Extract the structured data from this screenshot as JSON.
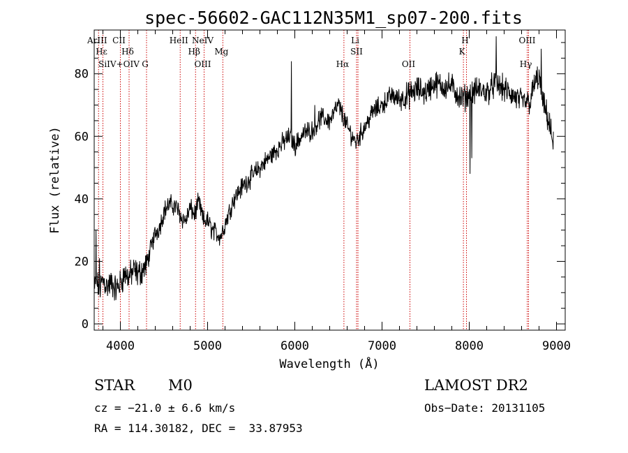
{
  "chart_data": {
    "type": "line",
    "title": "spec-56602-GAC112N35M1_sp07-200.fits",
    "xlabel": "Wavelength (Å)",
    "ylabel": "Flux (relative)",
    "xlim": [
      3700,
      9100
    ],
    "ylim": [
      -2,
      94
    ],
    "xticks": [
      4000,
      5000,
      6000,
      7000,
      8000,
      9000
    ],
    "yticks": [
      0,
      20,
      40,
      60,
      80
    ],
    "line_color": "#000000",
    "marker_color": "#cc0000",
    "spectrum_anchors": {
      "x": [
        3700,
        3720,
        3760,
        3800,
        3850,
        3900,
        3950,
        4000,
        4050,
        4100,
        4150,
        4200,
        4250,
        4300,
        4350,
        4400,
        4450,
        4500,
        4550,
        4600,
        4650,
        4700,
        4750,
        4800,
        4850,
        4900,
        4950,
        5000,
        5050,
        5100,
        5150,
        5200,
        5250,
        5300,
        5400,
        5500,
        5600,
        5700,
        5800,
        5900,
        5950,
        6000,
        6100,
        6200,
        6300,
        6400,
        6500,
        6560,
        6600,
        6700,
        6800,
        6900,
        7000,
        7100,
        7200,
        7300,
        7400,
        7500,
        7600,
        7700,
        7800,
        7900,
        8000,
        8100,
        8200,
        8300,
        8400,
        8500,
        8600,
        8700,
        8750,
        8800,
        8850,
        8900,
        8960
      ],
      "y": [
        10,
        14,
        11,
        14,
        12,
        13,
        11,
        13,
        16,
        15,
        17,
        16,
        17,
        19,
        24,
        29,
        31,
        36,
        38,
        38,
        37,
        34,
        33,
        37,
        35,
        39,
        33,
        33,
        30,
        29,
        28,
        32,
        36,
        40,
        44,
        47,
        50,
        53,
        56,
        59,
        60,
        57,
        61,
        62,
        66,
        65,
        70,
        66,
        63,
        58,
        63,
        68,
        70,
        73,
        72,
        73,
        75,
        74,
        77,
        76,
        76,
        72,
        73,
        75,
        74,
        77,
        75,
        73,
        71,
        71,
        77,
        79,
        70,
        66,
        58
      ]
    },
    "spikes": {
      "x": [
        5960,
        8310,
        8825,
        3720,
        3760,
        6230,
        7560,
        8030,
        8010
      ],
      "y": [
        84,
        92,
        88,
        30,
        21,
        70,
        75,
        53,
        48
      ]
    },
    "emission_lines": [
      {
        "label": "ArIII",
        "x": 3750
      },
      {
        "label": "Hε",
        "x": 3800
      },
      {
        "label": "SiIV+OIV",
        "x": 4000
      },
      {
        "label": "CII",
        "x": 4000
      },
      {
        "label": "Hδ",
        "x": 4100
      },
      {
        "label": "G",
        "x": 4300
      },
      {
        "label": "HeII",
        "x": 4686
      },
      {
        "label": "Hβ",
        "x": 4862
      },
      {
        "label": "OIII",
        "x": 4960
      },
      {
        "label": "NeIV",
        "x": 4960
      },
      {
        "label": "Mg",
        "x": 5175
      },
      {
        "label": "Hα",
        "x": 6563
      },
      {
        "label": "Li",
        "x": 6708
      },
      {
        "label": "SII",
        "x": 6724
      },
      {
        "label": "OII",
        "x": 7320
      },
      {
        "label": "H",
        "x": 7968
      },
      {
        "label": "K",
        "x": 7933
      },
      {
        "label": "Hγ",
        "x": 8665
      },
      {
        "label": "OIII",
        "x": 8680
      }
    ]
  },
  "info": {
    "class": "STAR",
    "subclass": "M0",
    "survey": "LAMOST DR2",
    "cz": "cz = −21.0 ± 6.6 km/s",
    "obsdate": "Obs−Date: 20131105",
    "coords": "RA = 114.30182, DEC =  33.87953"
  }
}
